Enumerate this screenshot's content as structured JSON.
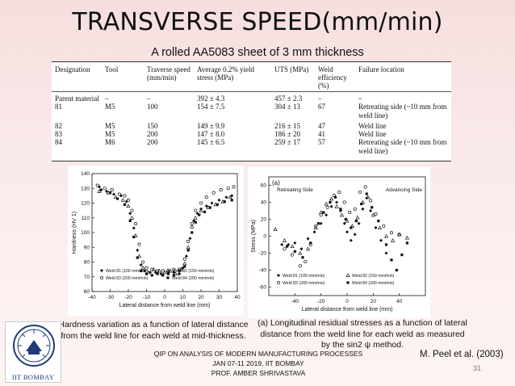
{
  "slide": {
    "title": "TRANSVERSE SPEED(mm/min)",
    "subtitle": "A rolled AA5083 sheet of 3 mm thickness",
    "citation": "M. Peel et al. (2003)",
    "page_number": "31",
    "footer_lines": [
      "QIP ON ANALYSIS OF MODERN MANUFACTURING PROCESSES",
      "JAN 07-11 2019, IIT BOMBAY",
      "PROF. AMBER SHRIVASTAVA"
    ],
    "logo_caption": "IIT BOMBAY",
    "caption_left": "Hardness variation as a function of lateral distance from the weld line for each weld at mid-thickness.",
    "caption_right": "(a) Longitudinal residual stresses as a function of lateral distance from the weld line for each weld as measured by the sin2 ψ method."
  },
  "table": {
    "headers": [
      "Designation",
      "Tool",
      "Traverse speed (mm/min)",
      "Average 0.2% yield stress (MPa)",
      "UTS (MPa)",
      "Weld efficiency (%)",
      "Failure location"
    ],
    "rows": [
      [
        "Parent material",
        "–",
        "–",
        "392 ± 4.3",
        "457 ± 2.3",
        "–",
        "–"
      ],
      [
        "81",
        "M5",
        "100",
        "154 ± 7.5",
        "304 ± 13",
        "67",
        "Retreating side (~10 mm from weld line)"
      ],
      [
        "82",
        "M5",
        "150",
        "149 ± 9.9",
        "216 ± 15",
        "47",
        "Weld line"
      ],
      [
        "83",
        "M5",
        "200",
        "147 ± 8.0",
        "186 ± 20",
        "41",
        "Weld line"
      ],
      [
        "84",
        "M6",
        "200",
        "145 ± 6.5",
        "259 ± 17",
        "57",
        "Retreating side (~10 mm from weld line)"
      ]
    ]
  },
  "chart_data": [
    {
      "type": "scatter",
      "title": "",
      "xlabel": "Lateral distance from weld line (mm)",
      "ylabel": "Hardness (HV 1)",
      "xlim": [
        -40,
        40
      ],
      "ylim": [
        60,
        140
      ],
      "xticks": [
        "-40",
        "-30",
        "-20",
        "-10",
        "0",
        "10",
        "20",
        "30",
        "40"
      ],
      "yticks": [
        "60",
        "70",
        "80",
        "90",
        "100",
        "110",
        "120",
        "130",
        "140"
      ],
      "legend": [
        "Weld 81 (100 mm/min)",
        "Weld 82 (150 mm/min)",
        "Weld 83 (200 mm/min)",
        "Weld 84 (200 mm/min)"
      ],
      "series": [
        {
          "name": "Weld 81 (100 mm/min)",
          "marker": "diamond",
          "points": [
            [
              -36,
              131
            ],
            [
              -32,
              128
            ],
            [
              -28,
              126
            ],
            [
              -24,
              125
            ],
            [
              -21,
              121
            ],
            [
              -19,
              113
            ],
            [
              -17,
              103
            ],
            [
              -15,
              88
            ],
            [
              -13,
              78
            ],
            [
              -11,
              74
            ],
            [
              -8,
              73
            ],
            [
              -5,
              73
            ],
            [
              -2,
              72
            ],
            [
              2,
              73
            ],
            [
              5,
              73
            ],
            [
              8,
              74
            ],
            [
              10,
              76
            ],
            [
              12,
              84
            ],
            [
              14,
              96
            ],
            [
              16,
              108
            ],
            [
              18,
              113
            ],
            [
              20,
              116
            ],
            [
              23,
              118
            ],
            [
              26,
              120
            ],
            [
              30,
              122
            ],
            [
              34,
              124
            ],
            [
              37,
              125
            ]
          ]
        },
        {
          "name": "Weld 82 (150 mm/min)",
          "marker": "triangle",
          "points": [
            [
              -36,
              128
            ],
            [
              -31,
              127
            ],
            [
              -27,
              124
            ],
            [
              -23,
              122
            ],
            [
              -20,
              118
            ],
            [
              -18,
              110
            ],
            [
              -16,
              98
            ],
            [
              -14,
              84
            ],
            [
              -12,
              76
            ],
            [
              -9,
              73
            ],
            [
              -6,
              75
            ],
            [
              -3,
              74
            ],
            [
              0,
              73
            ],
            [
              3,
              74
            ],
            [
              6,
              72
            ],
            [
              9,
              75
            ],
            [
              11,
              79
            ],
            [
              13,
              90
            ],
            [
              15,
              104
            ],
            [
              17,
              110
            ],
            [
              20,
              115
            ],
            [
              24,
              117
            ],
            [
              28,
              119
            ],
            [
              32,
              121
            ],
            [
              36,
              124
            ]
          ]
        },
        {
          "name": "Weld 83 (200 mm/min)",
          "marker": "circle",
          "points": [
            [
              -37,
              132
            ],
            [
              -33,
              130
            ],
            [
              -29,
              129
            ],
            [
              -25,
              126
            ],
            [
              -22,
              125
            ],
            [
              -20,
              122
            ],
            [
              -18,
              115
            ],
            [
              -16,
              106
            ],
            [
              -14,
              92
            ],
            [
              -12,
              80
            ],
            [
              -10,
              76
            ],
            [
              -7,
              75
            ],
            [
              -4,
              74
            ],
            [
              -1,
              74
            ],
            [
              2,
              74
            ],
            [
              5,
              75
            ],
            [
              8,
              75
            ],
            [
              11,
              82
            ],
            [
              13,
              94
            ],
            [
              15,
              106
            ],
            [
              17,
              115
            ],
            [
              20,
              120
            ],
            [
              23,
              124
            ],
            [
              27,
              127
            ],
            [
              31,
              129
            ],
            [
              35,
              130
            ],
            [
              38,
              131
            ]
          ]
        },
        {
          "name": "Weld 84 (200 mm/min)",
          "marker": "square",
          "points": [
            [
              -35,
              129
            ],
            [
              -30,
              127
            ],
            [
              -26,
              123
            ],
            [
              -22,
              119
            ],
            [
              -19,
              108
            ],
            [
              -17,
              97
            ],
            [
              -15,
              83
            ],
            [
              -13,
              74
            ],
            [
              -10,
              72
            ],
            [
              -7,
              71
            ],
            [
              -4,
              72
            ],
            [
              -1,
              71
            ],
            [
              2,
              72
            ],
            [
              5,
              71
            ],
            [
              8,
              72
            ],
            [
              11,
              77
            ],
            [
              13,
              88
            ],
            [
              15,
              100
            ],
            [
              17,
              107
            ],
            [
              19,
              112
            ],
            [
              22,
              114
            ],
            [
              25,
              117
            ],
            [
              29,
              119
            ],
            [
              33,
              121
            ],
            [
              37,
              122
            ]
          ]
        }
      ]
    },
    {
      "type": "scatter",
      "title": "(a)",
      "xlabel": "Lateral distance from weld line (mm)",
      "ylabel": "Stress (MPa)",
      "xlim": [
        -60,
        60
      ],
      "ylim": [
        -70,
        70
      ],
      "xticks": [
        "-40",
        "-20",
        "0",
        "20",
        "40"
      ],
      "yticks": [
        "60",
        "40",
        "20",
        "0",
        "-20",
        "-40",
        "-60"
      ],
      "annotations": [
        "Retreating Side",
        "Advancing Side"
      ],
      "legend": [
        "Weld 81 (100 mm/min)",
        "Weld 82 (150 mm/min)",
        "Weld 83 (200 mm/min)",
        "Weld 84 (200 mm/min)"
      ],
      "series": [
        {
          "name": "Weld 81 (100 mm/min)",
          "marker": "diamond",
          "points": [
            [
              -50,
              -10
            ],
            [
              -45,
              -10
            ],
            [
              -40,
              -8
            ],
            [
              -35,
              -15
            ],
            [
              -30,
              -3
            ],
            [
              -25,
              5
            ],
            [
              -20,
              15
            ],
            [
              -16,
              25
            ],
            [
              -12,
              35
            ],
            [
              -8,
              40
            ],
            [
              -5,
              30
            ],
            [
              -2,
              15
            ],
            [
              0,
              5
            ],
            [
              3,
              -5
            ],
            [
              6,
              2
            ],
            [
              9,
              15
            ],
            [
              12,
              32
            ],
            [
              15,
              45
            ],
            [
              18,
              30
            ],
            [
              22,
              10
            ],
            [
              26,
              -5
            ],
            [
              30,
              -20
            ]
          ]
        },
        {
          "name": "Weld 82 (150 mm/min)",
          "marker": "triangle",
          "points": [
            [
              -55,
              8
            ],
            [
              -48,
              -5
            ],
            [
              -42,
              -12
            ],
            [
              -36,
              -20
            ],
            [
              -30,
              -15
            ],
            [
              -24,
              10
            ],
            [
              -20,
              28
            ],
            [
              -16,
              38
            ],
            [
              -12,
              44
            ],
            [
              -8,
              35
            ],
            [
              -4,
              25
            ],
            [
              0,
              18
            ],
            [
              4,
              12
            ],
            [
              8,
              22
            ],
            [
              12,
              40
            ],
            [
              16,
              46
            ],
            [
              20,
              25
            ],
            [
              25,
              10
            ],
            [
              30,
              0
            ],
            [
              35,
              -5
            ],
            [
              40,
              2
            ],
            [
              46,
              -2
            ]
          ]
        },
        {
          "name": "Weld 83 (200 mm/min)",
          "marker": "circle",
          "points": [
            [
              -48,
              -15
            ],
            [
              -42,
              -22
            ],
            [
              -36,
              -35
            ],
            [
              -32,
              -30
            ],
            [
              -28,
              -10
            ],
            [
              -24,
              12
            ],
            [
              -20,
              25
            ],
            [
              -15,
              34
            ],
            [
              -10,
              48
            ],
            [
              -6,
              52
            ],
            [
              -2,
              40
            ],
            [
              2,
              28
            ],
            [
              6,
              32
            ],
            [
              10,
              52
            ],
            [
              14,
              58
            ],
            [
              18,
              42
            ],
            [
              22,
              26
            ],
            [
              28,
              12
            ],
            [
              34,
              4
            ],
            [
              40,
              2
            ]
          ]
        },
        {
          "name": "Weld 84 (200 mm/min)",
          "marker": "square",
          "points": [
            [
              -46,
              -12
            ],
            [
              -40,
              -18
            ],
            [
              -34,
              -25
            ],
            [
              -28,
              -8
            ],
            [
              -22,
              15
            ],
            [
              -18,
              28
            ],
            [
              -13,
              40
            ],
            [
              -9,
              46
            ],
            [
              -5,
              32
            ],
            [
              -1,
              20
            ],
            [
              3,
              10
            ],
            [
              7,
              18
            ],
            [
              11,
              38
            ],
            [
              15,
              50
            ],
            [
              19,
              34
            ],
            [
              24,
              18
            ],
            [
              30,
              -10
            ],
            [
              34,
              -28
            ],
            [
              38,
              -40
            ],
            [
              42,
              -22
            ],
            [
              46,
              -8
            ]
          ]
        }
      ]
    }
  ]
}
